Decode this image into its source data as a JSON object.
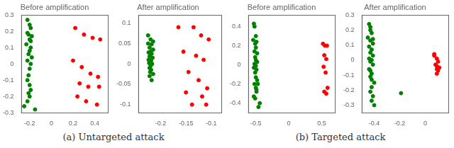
{
  "chart_data": [
    {
      "type": "scatter",
      "title": "Before amplification",
      "annotations": [
        "(a) Untargeted attack"
      ],
      "series": [
        {
          "color": "#008000",
          "x": [
            -0.22,
            -0.2,
            -0.19,
            -0.22,
            -0.21,
            -0.18,
            -0.2,
            -0.19,
            -0.23,
            -0.19,
            -0.2,
            -0.21,
            -0.18,
            -0.22,
            -0.19,
            -0.2,
            -0.21,
            -0.22,
            -0.2,
            -0.19,
            -0.21,
            -0.2,
            -0.22,
            -0.25,
            -0.15
          ],
          "values": [
            0.27,
            0.24,
            0.22,
            0.19,
            0.18,
            0.17,
            0.15,
            0.14,
            0.12,
            0.1,
            0.08,
            0.06,
            0.04,
            0.02,
            -0.0,
            -0.03,
            -0.07,
            -0.1,
            -0.13,
            -0.16,
            -0.18,
            -0.2,
            -0.23,
            -0.26,
            -0.28
          ]
        },
        {
          "color": "#ff0000",
          "x": [
            0.22,
            0.3,
            0.38,
            0.45,
            0.2,
            0.28,
            0.36,
            0.43,
            0.26,
            0.34,
            0.44,
            0.24,
            0.32,
            0.42
          ],
          "values": [
            0.22,
            0.18,
            0.16,
            0.15,
            0.02,
            -0.02,
            -0.06,
            -0.08,
            -0.12,
            -0.14,
            -0.14,
            -0.2,
            -0.23,
            -0.25
          ]
        }
      ],
      "xlim": [
        -0.28,
        0.52
      ],
      "ylim": [
        -0.3,
        0.3
      ],
      "xticks": [
        -0.2,
        0.0,
        0.2,
        0.4
      ],
      "yticks": [
        -0.3,
        -0.2,
        -0.1,
        0,
        0.1,
        0.2,
        0.3
      ],
      "grid": false
    },
    {
      "type": "scatter",
      "title": "After amplification",
      "series": [
        {
          "color": "#008000",
          "x": [
            -0.225,
            -0.22,
            -0.215,
            -0.225,
            -0.218,
            -0.222,
            -0.215,
            -0.22,
            -0.224,
            -0.218,
            -0.221,
            -0.222,
            -0.216,
            -0.224,
            -0.219,
            -0.221,
            -0.223,
            -0.217,
            -0.22,
            -0.222,
            -0.219,
            -0.221,
            -0.215,
            -0.222,
            -0.218
          ],
          "values": [
            0.07,
            0.06,
            0.055,
            0.05,
            0.048,
            0.04,
            0.035,
            0.03,
            0.028,
            0.025,
            0.02,
            0.018,
            0.015,
            0.01,
            0.008,
            0.005,
            0.002,
            0.0,
            -0.005,
            -0.01,
            -0.015,
            -0.02,
            -0.025,
            -0.03,
            -0.04
          ]
        },
        {
          "color": "#ff0000",
          "x": [
            -0.165,
            -0.135,
            -0.12,
            -0.105,
            -0.155,
            -0.13,
            -0.115,
            -0.145,
            -0.125,
            -0.108,
            -0.15,
            -0.118,
            -0.11,
            -0.138
          ],
          "values": [
            0.09,
            0.09,
            0.07,
            0.06,
            0.03,
            0.02,
            0.01,
            -0.02,
            -0.04,
            -0.06,
            -0.07,
            -0.08,
            -0.1,
            -0.1
          ]
        }
      ],
      "xlim": [
        -0.245,
        -0.08
      ],
      "ylim": [
        -0.12,
        0.12
      ],
      "xticks": [
        -0.2,
        -0.15,
        -0.1
      ],
      "yticks": [
        -0.1,
        -0.05,
        0,
        0.05,
        0.1
      ],
      "grid": false
    },
    {
      "type": "scatter",
      "title": "Before amplification",
      "annotations": [
        "(b) Targeted attack"
      ],
      "series": [
        {
          "color": "#008000",
          "x": [
            -0.53,
            -0.52,
            -0.5,
            -0.54,
            -0.49,
            -0.51,
            -0.5,
            -0.52,
            -0.48,
            -0.51,
            -0.5,
            -0.48,
            -0.52,
            -0.5,
            -0.53,
            -0.49,
            -0.51,
            -0.5,
            -0.48,
            -0.52,
            -0.5,
            -0.49,
            -0.51,
            -0.44,
            -0.46,
            -0.47,
            -0.49,
            -0.53
          ],
          "values": [
            0.43,
            0.4,
            0.3,
            0.26,
            0.24,
            0.22,
            0.18,
            0.14,
            0.12,
            0.08,
            0.05,
            0.03,
            0.01,
            -0.01,
            -0.03,
            -0.05,
            -0.08,
            -0.13,
            -0.16,
            -0.2,
            -0.24,
            -0.28,
            -0.35,
            -0.4,
            -0.44,
            -0.2,
            -0.26,
            -0.33
          ]
        },
        {
          "color": "#ff0000",
          "x": [
            0.52,
            0.55,
            0.58,
            0.54,
            0.57,
            0.53,
            0.56,
            0.59,
            0.54,
            0.57
          ],
          "values": [
            0.22,
            0.2,
            0.2,
            0.1,
            0.06,
            -0.02,
            -0.08,
            -0.24,
            -0.28,
            -0.3
          ]
        }
      ],
      "xlim": [
        -0.62,
        0.7
      ],
      "ylim": [
        -0.5,
        0.52
      ],
      "xticks": [
        -0.5,
        0.0,
        0.5
      ],
      "yticks": [
        -0.4,
        -0.2,
        0,
        0.2,
        0.4
      ],
      "grid": false
    },
    {
      "type": "scatter",
      "title": "After amplification",
      "series": [
        {
          "color": "#008000",
          "x": [
            -0.44,
            -0.43,
            -0.42,
            -0.45,
            -0.43,
            -0.41,
            -0.44,
            -0.42,
            -0.43,
            -0.41,
            -0.44,
            -0.42,
            -0.43,
            -0.41,
            -0.44,
            -0.42,
            -0.43,
            -0.4,
            -0.42,
            -0.43,
            -0.41,
            -0.42,
            -0.4,
            -0.43,
            -0.41,
            -0.19,
            -0.42,
            -0.43
          ],
          "values": [
            0.24,
            0.2,
            0.18,
            0.15,
            0.13,
            0.11,
            0.09,
            0.07,
            0.05,
            0.03,
            0.01,
            0.0,
            -0.01,
            -0.03,
            -0.06,
            -0.09,
            -0.11,
            -0.15,
            -0.18,
            -0.21,
            -0.24,
            -0.27,
            -0.3,
            0.22,
            0.14,
            -0.22,
            -0.13,
            -0.07
          ]
        },
        {
          "color": "#ff0000",
          "x": [
            0.07,
            0.09,
            0.1,
            0.08,
            0.09,
            0.11,
            0.09,
            0.1,
            0.07,
            0.09
          ],
          "values": [
            0.03,
            0.01,
            -0.01,
            -0.03,
            -0.04,
            -0.05,
            -0.06,
            -0.07,
            0.04,
            -0.09
          ]
        }
      ],
      "xlim": [
        -0.5,
        0.18
      ],
      "ylim": [
        -0.35,
        0.3
      ],
      "xticks": [
        -0.4,
        -0.2,
        0.0
      ],
      "yticks": [
        -0.3,
        -0.2,
        -0.1,
        0,
        0.1,
        0.2,
        0.3
      ],
      "grid": false
    }
  ]
}
